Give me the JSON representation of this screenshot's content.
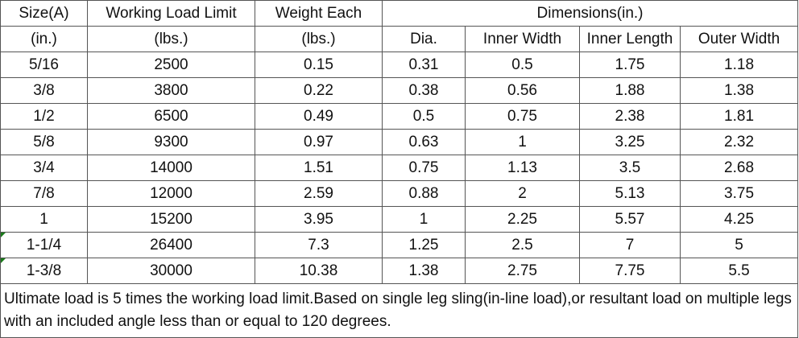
{
  "header": {
    "size_label_1": "Size(A)",
    "size_label_2": "(in.)",
    "wll_label_1": "Working Load Limit",
    "wll_label_2": "(lbs.)",
    "weight_label_1": "Weight Each",
    "weight_label_2": "(lbs.)",
    "dimensions_label": "Dimensions(in.)",
    "dim_cols": [
      "Dia.",
      "Inner Width",
      "Inner Length",
      "Outer Width"
    ]
  },
  "rows": [
    [
      "5/16",
      "2500",
      "0.15",
      "0.31",
      "0.5",
      "1.75",
      "1.18"
    ],
    [
      "3/8",
      "3800",
      "0.22",
      "0.38",
      "0.56",
      "1.88",
      "1.38"
    ],
    [
      "1/2",
      "6500",
      "0.49",
      "0.5",
      "0.75",
      "2.38",
      "1.81"
    ],
    [
      "5/8",
      "9300",
      "0.97",
      "0.63",
      "1",
      "3.25",
      "2.32"
    ],
    [
      "3/4",
      "14000",
      "1.51",
      "0.75",
      "1.13",
      "3.5",
      "2.68"
    ],
    [
      "7/8",
      "12000",
      "2.59",
      "0.88",
      "2",
      "5.13",
      "3.75"
    ],
    [
      "1",
      "15200",
      "3.95",
      "1",
      "2.25",
      "5.57",
      "4.25"
    ],
    [
      "1-1/4",
      "26400",
      "7.3",
      "1.25",
      "2.5",
      "7",
      "5"
    ],
    [
      "1-3/8",
      "30000",
      "10.38",
      "1.38",
      "2.75",
      "7.75",
      "5.5"
    ]
  ],
  "note": "Ultimate load is 5 times the working load limit.Based on single leg sling(in-line load),or resultant load on multiple legs with an included angle less than or equal to 120 degrees.",
  "colors": {
    "border": "#555555",
    "text": "#111111",
    "corner_marker": "#1a7a1a"
  }
}
